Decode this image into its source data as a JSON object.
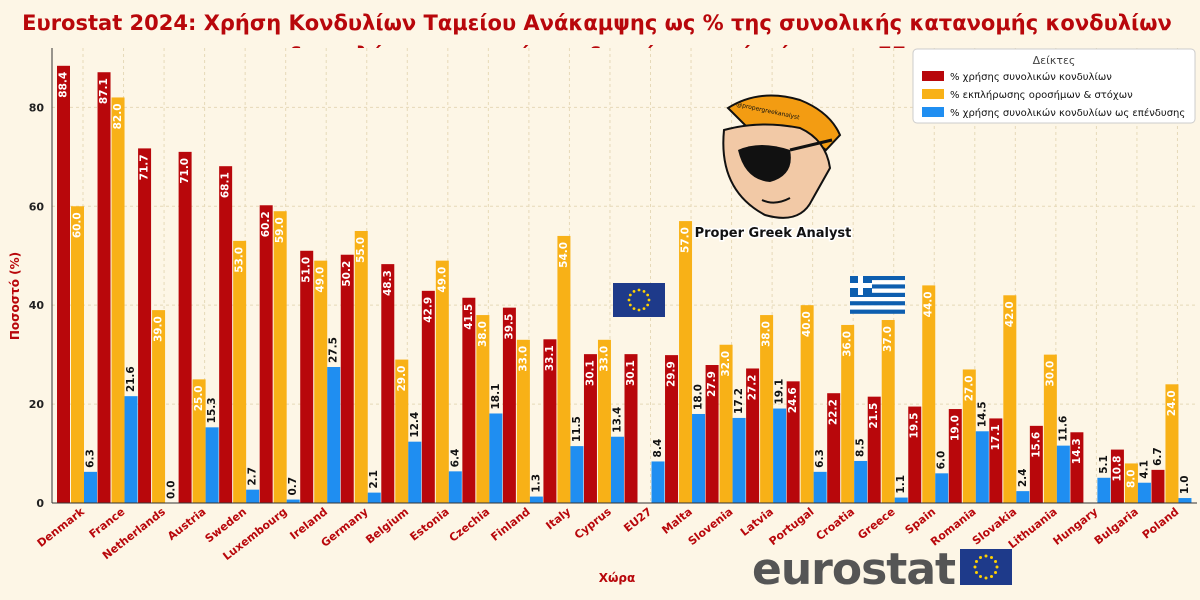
{
  "chart_data": {
    "type": "bar",
    "title": "Ευrostat 2024: Χρήση Κονδυλίων Ταμείου Ανάκαμψης ως % της συνολικής κατανομής κονδυλίων",
    "title_line2": "& εκπλήρωση οροσήμων & στόχων ανά χώρα της ΕΕ",
    "xlabel": "Χώρα",
    "ylabel": "Ποσοστό (%)",
    "ylim": [
      0,
      92
    ],
    "yticks": [
      0,
      20,
      40,
      60,
      80
    ],
    "grid": true,
    "legend_title": "Δείκτες",
    "legend_position": "top-right",
    "categories": [
      "Denmark",
      "France",
      "Netherlands",
      "Austria",
      "Sweden",
      "Luxembourg",
      "Ireland",
      "Germany",
      "Belgium",
      "Estonia",
      "Czechia",
      "Finland",
      "Italy",
      "Cyprus",
      "EU27",
      "Malta",
      "Slovenia",
      "Latvia",
      "Portugal",
      "Croatia",
      "Greece",
      "Spain",
      "Romania",
      "Slovakia",
      "Lithuania",
      "Hungary",
      "Bulgaria",
      "Poland"
    ],
    "series": [
      {
        "name": "% χρήσης συνολικών κονδυλίων",
        "color": "#b8070b",
        "label_style": "light",
        "values": [
          88.4,
          87.1,
          71.7,
          71.0,
          68.1,
          60.2,
          51.0,
          50.2,
          48.3,
          42.9,
          41.5,
          39.5,
          33.1,
          30.1,
          30.1,
          29.9,
          27.9,
          27.2,
          24.6,
          22.2,
          21.5,
          19.5,
          19.0,
          17.1,
          15.6,
          14.3,
          10.8,
          6.7
        ]
      },
      {
        "name": "% εκπλήρωσης οροσήμων & στόχων",
        "color": "#f8b117",
        "label_style": "light",
        "values": [
          60.0,
          82.0,
          39.0,
          25.0,
          53.0,
          59.0,
          49.0,
          55.0,
          29.0,
          49.0,
          38.0,
          33.0,
          54.0,
          33.0,
          null,
          57.0,
          32.0,
          38.0,
          40.0,
          36.0,
          37.0,
          44.0,
          27.0,
          42.0,
          30.0,
          null,
          8.0,
          24.0
        ]
      },
      {
        "name": "% χρήσης συνολικών κονδυλίων ως επένδυσης",
        "color": "#1f8ef1",
        "label_style": "dark",
        "values": [
          6.3,
          21.6,
          0.0,
          15.3,
          2.7,
          0.7,
          27.5,
          2.1,
          12.4,
          6.4,
          18.1,
          1.3,
          11.5,
          13.4,
          8.4,
          18.0,
          17.2,
          19.1,
          6.3,
          8.5,
          1.1,
          6.0,
          14.5,
          2.4,
          11.6,
          5.1,
          4.1,
          1.0
        ]
      }
    ]
  },
  "watermark": {
    "text": "Proper Greek Analyst",
    "cap_text": "@propergreekanalyst"
  },
  "source_logo": {
    "text": "eurostat"
  },
  "colors": {
    "background": "#fdf6e6",
    "title": "#b8070b",
    "eu_flag": "#1e3a8a",
    "eu_star": "#ffd200",
    "greek_flag": "#0d5eaf"
  }
}
